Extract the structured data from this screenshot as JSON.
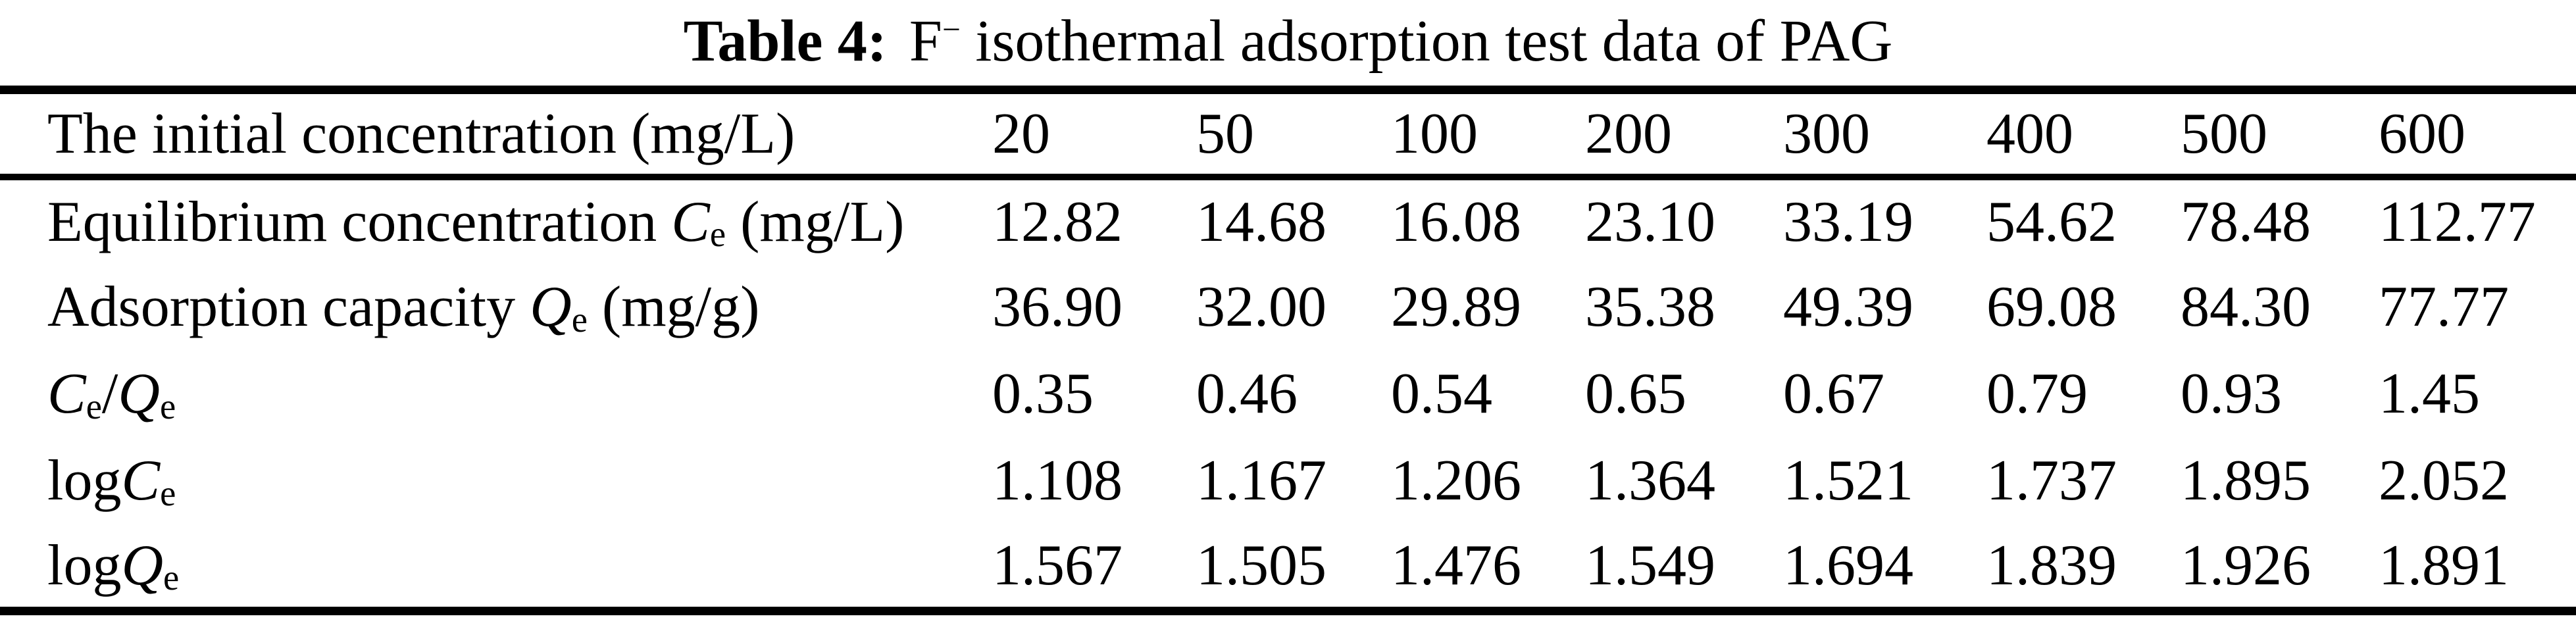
{
  "title": {
    "label_bold": "Table 4:",
    "ion": "F",
    "ion_charge": "−",
    "rest": " isothermal adsorption test data of PAG"
  },
  "table": {
    "header": {
      "label": "The initial concentration (mg/L)",
      "values": [
        "20",
        "50",
        "100",
        "200",
        "300",
        "400",
        "500",
        "600"
      ]
    },
    "rows": [
      {
        "label": [
          {
            "t": "text",
            "v": "Equilibrium concentration "
          },
          {
            "t": "i",
            "v": "C"
          },
          {
            "t": "sub",
            "v": "e"
          },
          {
            "t": "text",
            "v": " (mg/L)"
          }
        ],
        "values": [
          "12.82",
          "14.68",
          "16.08",
          "23.10",
          "33.19",
          "54.62",
          "78.48",
          "112.77"
        ]
      },
      {
        "label": [
          {
            "t": "text",
            "v": "Adsorption capacity "
          },
          {
            "t": "i",
            "v": "Q"
          },
          {
            "t": "sub",
            "v": "e"
          },
          {
            "t": "text",
            "v": " (mg/g)"
          }
        ],
        "values": [
          "36.90",
          "32.00",
          "29.89",
          "35.38",
          "49.39",
          "69.08",
          "84.30",
          "77.77"
        ]
      },
      {
        "label": [
          {
            "t": "i",
            "v": "C"
          },
          {
            "t": "sub",
            "v": "e"
          },
          {
            "t": "text",
            "v": "/"
          },
          {
            "t": "i",
            "v": "Q"
          },
          {
            "t": "sub",
            "v": "e"
          }
        ],
        "values": [
          "0.35",
          "0.46",
          "0.54",
          "0.65",
          "0.67",
          "0.79",
          "0.93",
          "1.45"
        ]
      },
      {
        "label": [
          {
            "t": "text",
            "v": "log"
          },
          {
            "t": "i",
            "v": "C"
          },
          {
            "t": "sub",
            "v": "e"
          }
        ],
        "values": [
          "1.108",
          "1.167",
          "1.206",
          "1.364",
          "1.521",
          "1.737",
          "1.895",
          "2.052"
        ]
      },
      {
        "label": [
          {
            "t": "text",
            "v": "log"
          },
          {
            "t": "i",
            "v": "Q"
          },
          {
            "t": "sub",
            "v": "e"
          }
        ],
        "values": [
          "1.567",
          "1.505",
          "1.476",
          "1.549",
          "1.694",
          "1.839",
          "1.926",
          "1.891"
        ]
      }
    ]
  },
  "colors": {
    "text": "#000000",
    "background": "#ffffff",
    "rule": "#000000"
  },
  "chart_data": {
    "type": "table",
    "title": "Table 4: F− isothermal adsorption test data of PAG",
    "columns": [
      "The initial concentration (mg/L)",
      "20",
      "50",
      "100",
      "200",
      "300",
      "400",
      "500",
      "600"
    ],
    "rows": [
      [
        "Equilibrium concentration Ce (mg/L)",
        12.82,
        14.68,
        16.08,
        23.1,
        33.19,
        54.62,
        78.48,
        112.77
      ],
      [
        "Adsorption capacity Qe (mg/g)",
        36.9,
        32.0,
        29.89,
        35.38,
        49.39,
        69.08,
        84.3,
        77.77
      ],
      [
        "Ce/Qe",
        0.35,
        0.46,
        0.54,
        0.65,
        0.67,
        0.79,
        0.93,
        1.45
      ],
      [
        "logCe",
        1.108,
        1.167,
        1.206,
        1.364,
        1.521,
        1.737,
        1.895,
        2.052
      ],
      [
        "logQe",
        1.567,
        1.505,
        1.476,
        1.549,
        1.694,
        1.839,
        1.926,
        1.891
      ]
    ]
  }
}
